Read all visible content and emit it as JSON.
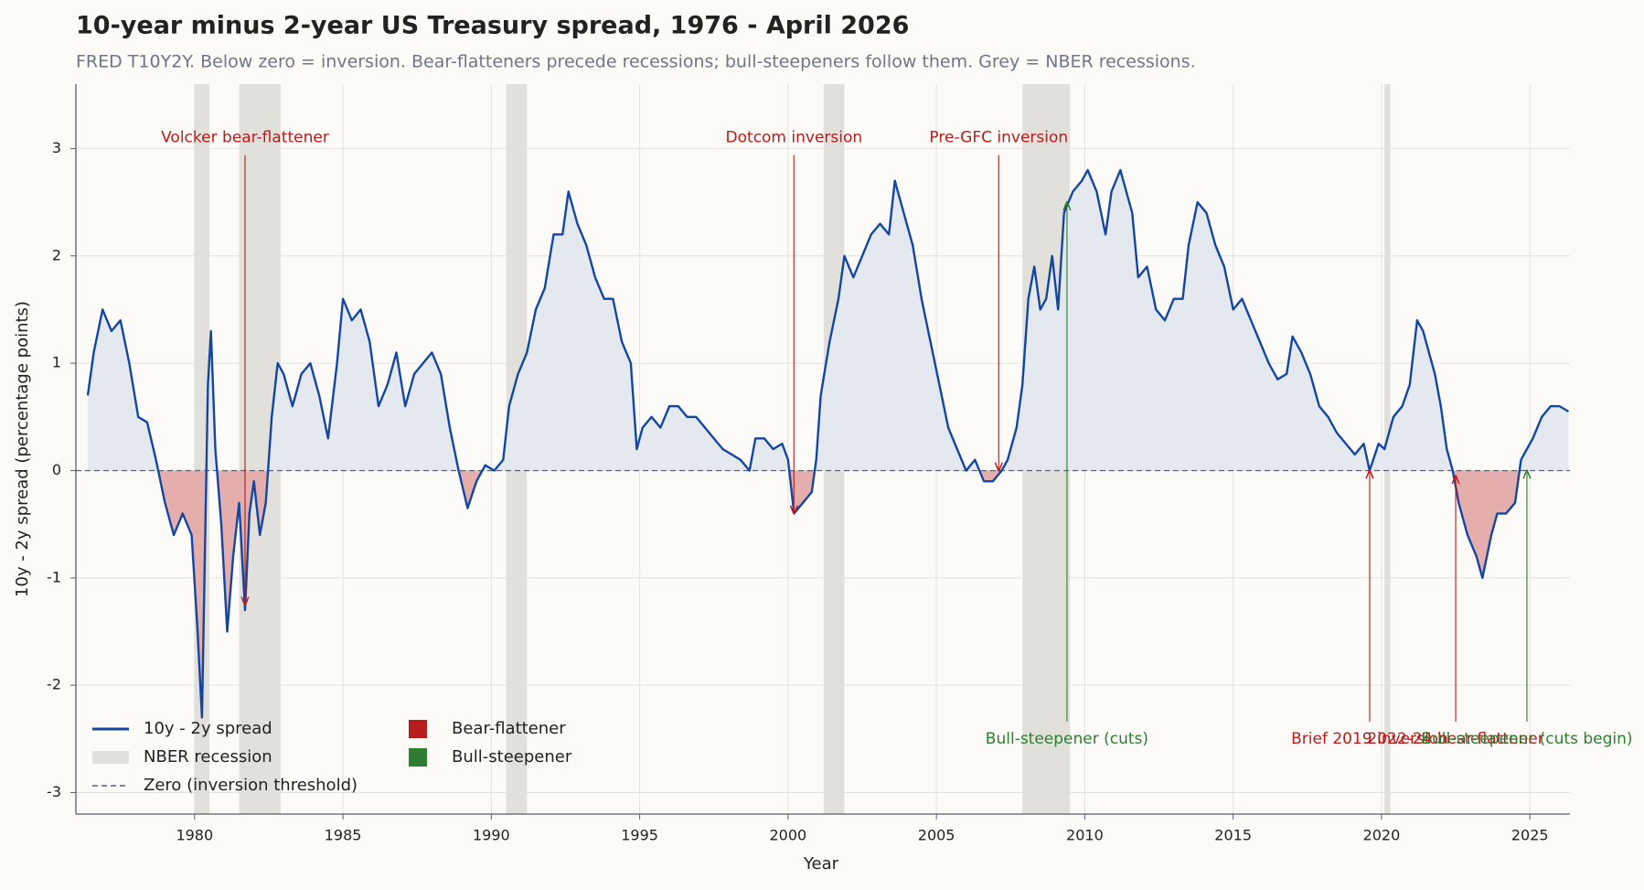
{
  "chart_data": {
    "type": "line",
    "title": "10-year minus 2-year US Treasury spread, 1976 - April 2026",
    "subtitle": "FRED T10Y2Y. Below zero = inversion. Bear-flatteners precede recessions; bull-steepeners follow them. Grey = NBER recessions.",
    "xlabel": "Year",
    "ylabel": "10y - 2y spread (percentage points)",
    "series_name": "10y - 2y spread",
    "color": "#1446a0",
    "x": [
      1976.4,
      1976.6,
      1976.9,
      1977.2,
      1977.5,
      1977.8,
      1978.1,
      1978.4,
      1978.7,
      1979.0,
      1979.3,
      1979.6,
      1979.9,
      1980.1,
      1980.25,
      1980.45,
      1980.55,
      1980.7,
      1980.9,
      1981.1,
      1981.3,
      1981.5,
      1981.7,
      1981.85,
      1982.0,
      1982.2,
      1982.4,
      1982.6,
      1982.8,
      1983.0,
      1983.3,
      1983.6,
      1983.9,
      1984.2,
      1984.5,
      1984.8,
      1985.0,
      1985.3,
      1985.6,
      1985.9,
      1986.2,
      1986.5,
      1986.8,
      1987.1,
      1987.4,
      1987.7,
      1988.0,
      1988.3,
      1988.6,
      1988.9,
      1989.2,
      1989.5,
      1989.8,
      1990.1,
      1990.4,
      1990.6,
      1990.9,
      1991.2,
      1991.5,
      1991.8,
      1992.1,
      1992.4,
      1992.6,
      1992.9,
      1993.2,
      1993.5,
      1993.8,
      1994.1,
      1994.4,
      1994.7,
      1994.9,
      1995.1,
      1995.4,
      1995.7,
      1996.0,
      1996.3,
      1996.6,
      1996.9,
      1997.2,
      1997.5,
      1997.8,
      1998.1,
      1998.4,
      1998.7,
      1998.9,
      1999.2,
      1999.5,
      1999.8,
      2000.0,
      2000.2,
      2000.5,
      2000.8,
      2000.95,
      2001.1,
      2001.4,
      2001.7,
      2001.9,
      2002.2,
      2002.5,
      2002.8,
      2003.1,
      2003.4,
      2003.6,
      2003.9,
      2004.2,
      2004.5,
      2004.8,
      2005.1,
      2005.4,
      2005.7,
      2006.0,
      2006.3,
      2006.6,
      2006.9,
      2007.2,
      2007.4,
      2007.7,
      2007.9,
      2008.1,
      2008.3,
      2008.5,
      2008.7,
      2008.9,
      2009.1,
      2009.3,
      2009.6,
      2009.9,
      2010.1,
      2010.4,
      2010.7,
      2010.9,
      2011.2,
      2011.4,
      2011.6,
      2011.8,
      2012.1,
      2012.4,
      2012.7,
      2013.0,
      2013.3,
      2013.5,
      2013.8,
      2014.1,
      2014.4,
      2014.7,
      2015.0,
      2015.3,
      2015.6,
      2015.9,
      2016.2,
      2016.5,
      2016.8,
      2017.0,
      2017.3,
      2017.6,
      2017.9,
      2018.2,
      2018.5,
      2018.8,
      2019.1,
      2019.4,
      2019.6,
      2019.9,
      2020.1,
      2020.4,
      2020.7,
      2020.95,
      2021.2,
      2021.4,
      2021.6,
      2021.8,
      2022.0,
      2022.2,
      2022.4,
      2022.6,
      2022.9,
      2023.2,
      2023.4,
      2023.7,
      2023.9,
      2024.2,
      2024.5,
      2024.7,
      2024.9,
      2025.1,
      2025.4,
      2025.7,
      2026.0,
      2026.3
    ],
    "values": [
      0.7,
      1.1,
      1.5,
      1.3,
      1.4,
      1.0,
      0.5,
      0.45,
      0.1,
      -0.3,
      -0.6,
      -0.4,
      -0.6,
      -1.5,
      -2.3,
      0.8,
      1.3,
      0.2,
      -0.5,
      -1.5,
      -0.8,
      -0.3,
      -1.3,
      -0.4,
      -0.1,
      -0.6,
      -0.3,
      0.5,
      1.0,
      0.9,
      0.6,
      0.9,
      1.0,
      0.7,
      0.3,
      1.0,
      1.6,
      1.4,
      1.5,
      1.2,
      0.6,
      0.8,
      1.1,
      0.6,
      0.9,
      1.0,
      1.1,
      0.9,
      0.4,
      0.0,
      -0.35,
      -0.1,
      0.05,
      0.0,
      0.1,
      0.6,
      0.9,
      1.1,
      1.5,
      1.7,
      2.2,
      2.2,
      2.6,
      2.3,
      2.1,
      1.8,
      1.6,
      1.6,
      1.2,
      1.0,
      0.2,
      0.4,
      0.5,
      0.4,
      0.6,
      0.6,
      0.5,
      0.5,
      0.4,
      0.3,
      0.2,
      0.15,
      0.1,
      0.0,
      0.3,
      0.3,
      0.2,
      0.25,
      0.1,
      -0.4,
      -0.3,
      -0.2,
      0.1,
      0.7,
      1.2,
      1.6,
      2.0,
      1.8,
      2.0,
      2.2,
      2.3,
      2.2,
      2.7,
      2.4,
      2.1,
      1.6,
      1.2,
      0.8,
      0.4,
      0.2,
      0.0,
      0.1,
      -0.1,
      -0.1,
      0.0,
      0.1,
      0.4,
      0.8,
      1.6,
      1.9,
      1.5,
      1.6,
      2.0,
      1.5,
      2.4,
      2.6,
      2.7,
      2.8,
      2.6,
      2.2,
      2.6,
      2.8,
      2.6,
      2.4,
      1.8,
      1.9,
      1.5,
      1.4,
      1.6,
      1.6,
      2.1,
      2.5,
      2.4,
      2.1,
      1.9,
      1.5,
      1.6,
      1.4,
      1.2,
      1.0,
      0.85,
      0.9,
      1.25,
      1.1,
      0.9,
      0.6,
      0.5,
      0.35,
      0.25,
      0.15,
      0.25,
      0.0,
      0.25,
      0.2,
      0.5,
      0.6,
      0.8,
      1.4,
      1.3,
      1.1,
      0.9,
      0.6,
      0.2,
      0.0,
      -0.3,
      -0.6,
      -0.8,
      -1.0,
      -0.6,
      -0.4,
      -0.4,
      -0.3,
      0.1,
      0.2,
      0.3,
      0.5,
      0.6,
      0.6,
      0.55
    ],
    "xlim": [
      1976,
      2026.35
    ],
    "ylim": [
      -3.2,
      3.6
    ],
    "xticks": [
      1980,
      1985,
      1990,
      1995,
      2000,
      2005,
      2010,
      2015,
      2020,
      2025
    ],
    "yticks": [
      -3,
      -2,
      -1,
      0,
      1,
      2,
      3
    ],
    "grid": true,
    "fills": {
      "below": "#e3aeab",
      "above": "#e4e8ef"
    },
    "hline": {
      "value": 0,
      "name": "Zero (inversion threshold)",
      "color": "#5a6275"
    },
    "recessions": {
      "name": "NBER recession",
      "color": "#e1e0db",
      "spans": [
        [
          1980.0,
          1980.5
        ],
        [
          1981.5,
          1982.9
        ],
        [
          1990.5,
          1991.2
        ],
        [
          2001.2,
          2001.9
        ],
        [
          2007.9,
          2009.5
        ],
        [
          2020.1,
          2020.3
        ]
      ]
    },
    "markers": [
      {
        "name": "Bear-flattener",
        "color": "#b71c1c"
      },
      {
        "name": "Bull-steepener",
        "color": "#2e7d32"
      }
    ],
    "annotations": [
      {
        "text": "Volcker bear-flattener",
        "x": 1981.7,
        "y": -1.25,
        "text_y": 3.1,
        "color": "#b71c1c"
      },
      {
        "text": "Dotcom inversion",
        "x": 2000.2,
        "y": -0.4,
        "text_y": 3.1,
        "color": "#b71c1c"
      },
      {
        "text": "Pre-GFC inversion",
        "x": 2007.1,
        "y": 0.0,
        "text_y": 3.1,
        "color": "#b71c1c"
      },
      {
        "text": "Bull-steepener (cuts)",
        "x": 2009.4,
        "y": 2.5,
        "text_y": -2.5,
        "color": "#2e7d32"
      },
      {
        "text": "Brief 2019 inversion",
        "x": 2019.6,
        "y": 0.0,
        "text_y": -2.5,
        "color": "#b71c1c"
      },
      {
        "text": "2022-24 bear-flattener",
        "x": 2022.5,
        "y": -0.05,
        "text_y": -2.5,
        "color": "#b71c1c"
      },
      {
        "text": "Bull-steepener (cuts begin)",
        "x": 2024.9,
        "y": 0.0,
        "text_y": -2.5,
        "color": "#2e7d32"
      }
    ],
    "legend": "lower left"
  }
}
